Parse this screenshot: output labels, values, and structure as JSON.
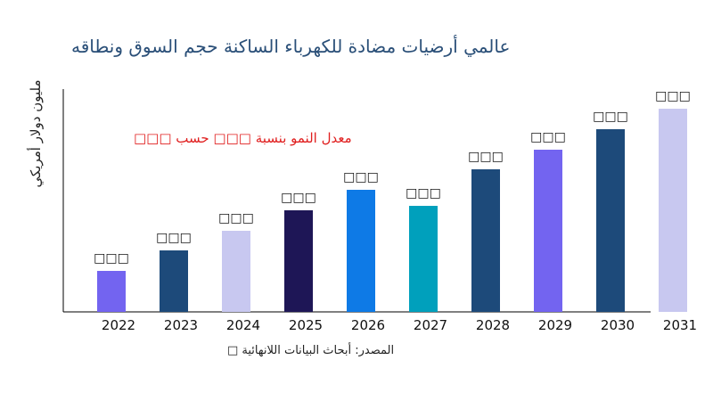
{
  "chart_data": {
    "type": "bar",
    "title": "عالمي أرضيات مضادة للكهرباء الساكنة حجم السوق ونطاقه",
    "ylabel": "مليون دولار أمريكي",
    "xlabel": "",
    "annotation": "معدل النمو بنسبة □□□ حسب □□□",
    "source": "المصدر: أبحاث البيانات اللانهائية □",
    "categories": [
      "2022",
      "2023",
      "2024",
      "2025",
      "2026",
      "2027",
      "2028",
      "2029",
      "2030",
      "2031"
    ],
    "values": [
      46,
      69,
      91,
      114,
      137,
      119,
      160,
      182,
      205,
      228
    ],
    "data_labels": [
      "□□□",
      "□□□",
      "□□□",
      "□□□",
      "□□□",
      "□□□",
      "□□□",
      "□□□",
      "□□□",
      "□□□"
    ],
    "colors": [
      "#7364f0",
      "#1d4a7a",
      "#c8c8f0",
      "#1e1656",
      "#0e7ae6",
      "#00a0bc",
      "#1d4a7a",
      "#7364f0",
      "#1d4a7a",
      "#c8c8f0"
    ],
    "ylim": [
      0,
      250
    ],
    "grid": false,
    "y_ticks_shown": false
  }
}
